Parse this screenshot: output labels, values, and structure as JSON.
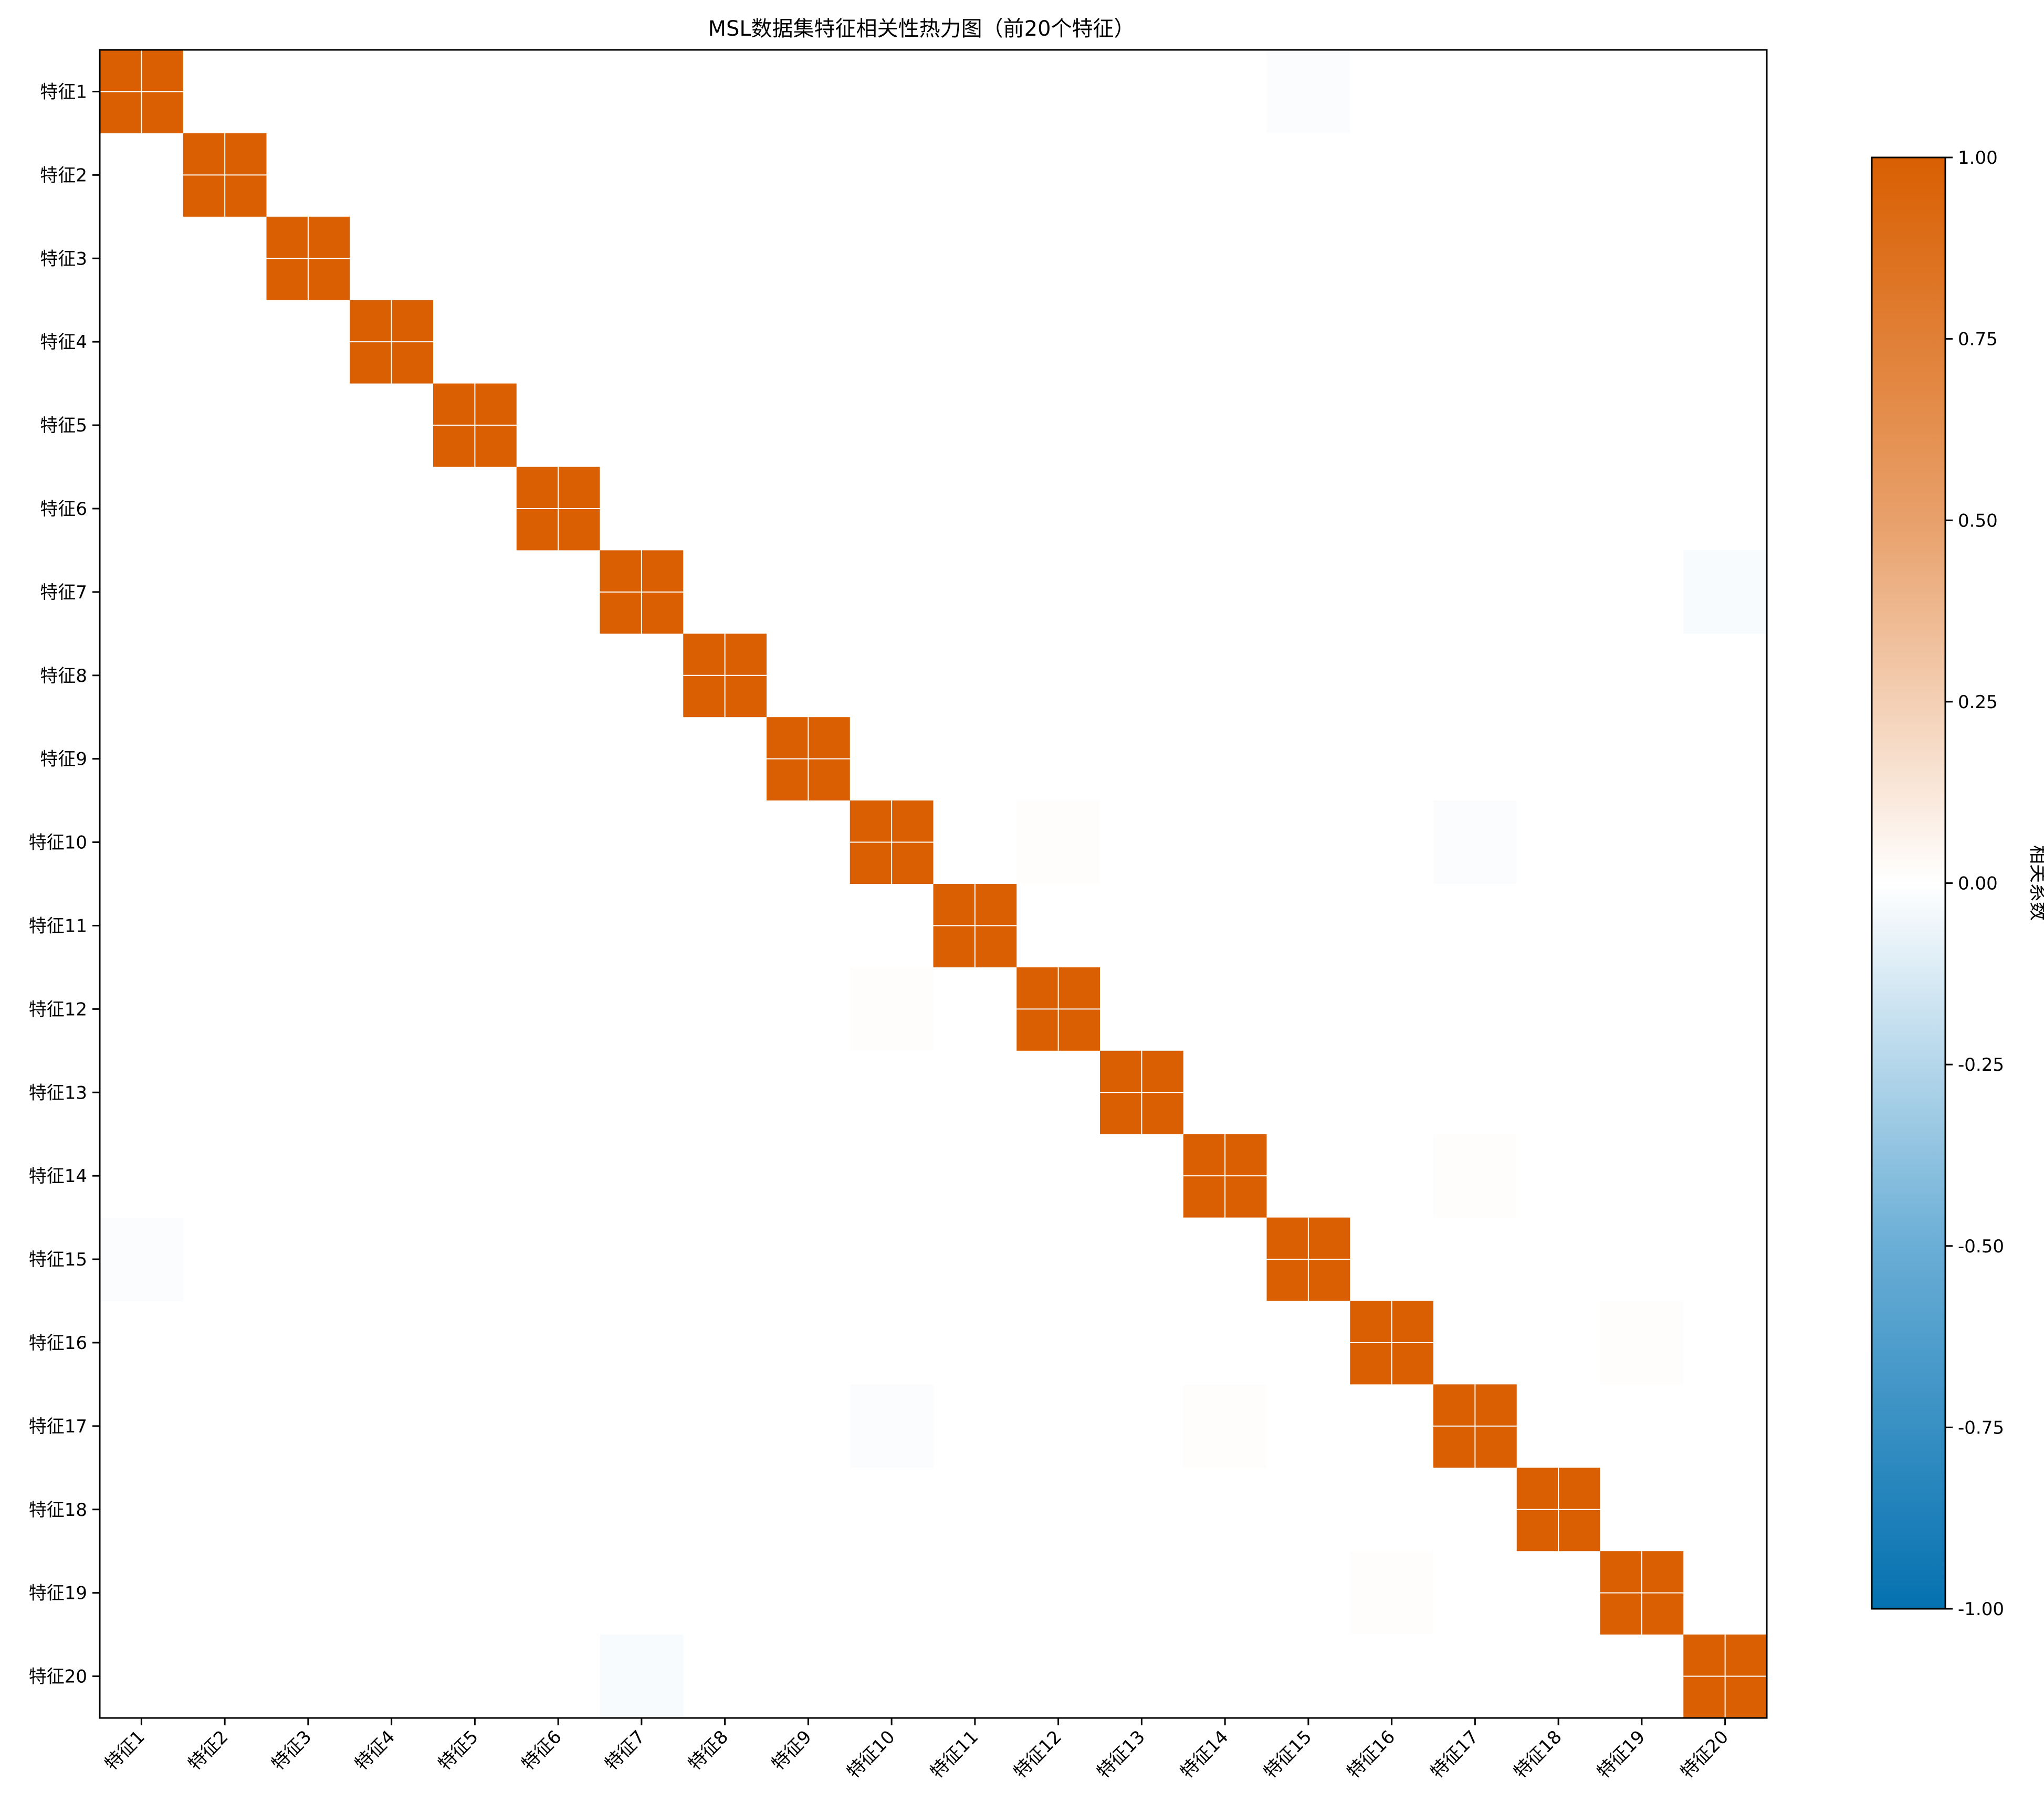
{
  "chart_data": {
    "type": "heatmap",
    "title": "MSL数据集特征相关性热力图（前20个特征）",
    "x_labels": [
      "特征1",
      "特征2",
      "特征3",
      "特征4",
      "特征5",
      "特征6",
      "特征7",
      "特征8",
      "特征9",
      "特征10",
      "特征11",
      "特征12",
      "特征13",
      "特征14",
      "特征15",
      "特征16",
      "特征17",
      "特征18",
      "特征19",
      "特征20"
    ],
    "y_labels": [
      "特征1",
      "特征2",
      "特征3",
      "特征4",
      "特征5",
      "特征6",
      "特征7",
      "特征8",
      "特征9",
      "特征10",
      "特征11",
      "特征12",
      "特征13",
      "特征14",
      "特征15",
      "特征16",
      "特征17",
      "特征18",
      "特征19",
      "特征20"
    ],
    "diagonal_value": 1.0,
    "off_diagonal_default": 0.0,
    "nonzero_off_diagonal": [
      {
        "row": 1,
        "col": 15,
        "value": -0.02
      },
      {
        "row": 15,
        "col": 1,
        "value": -0.02
      },
      {
        "row": 7,
        "col": 20,
        "value": -0.03
      },
      {
        "row": 20,
        "col": 7,
        "value": -0.03
      },
      {
        "row": 10,
        "col": 12,
        "value": 0.01
      },
      {
        "row": 12,
        "col": 10,
        "value": 0.01
      },
      {
        "row": 10,
        "col": 17,
        "value": -0.02
      },
      {
        "row": 17,
        "col": 10,
        "value": -0.02
      },
      {
        "row": 14,
        "col": 17,
        "value": 0.015
      },
      {
        "row": 17,
        "col": 14,
        "value": 0.015
      },
      {
        "row": 16,
        "col": 19,
        "value": 0.015
      },
      {
        "row": 19,
        "col": 16,
        "value": 0.015
      }
    ],
    "colorbar": {
      "label": "相关系数",
      "min": -1.0,
      "max": 1.0,
      "ticks": [
        "1.00",
        "0.75",
        "0.50",
        "0.25",
        "0.00",
        "-0.25",
        "-0.50",
        "-0.75",
        "-1.00"
      ],
      "colors": {
        "negative": "#0571b0",
        "neutral": "#ffffff",
        "positive": "#d95f02"
      }
    },
    "grid": false
  }
}
